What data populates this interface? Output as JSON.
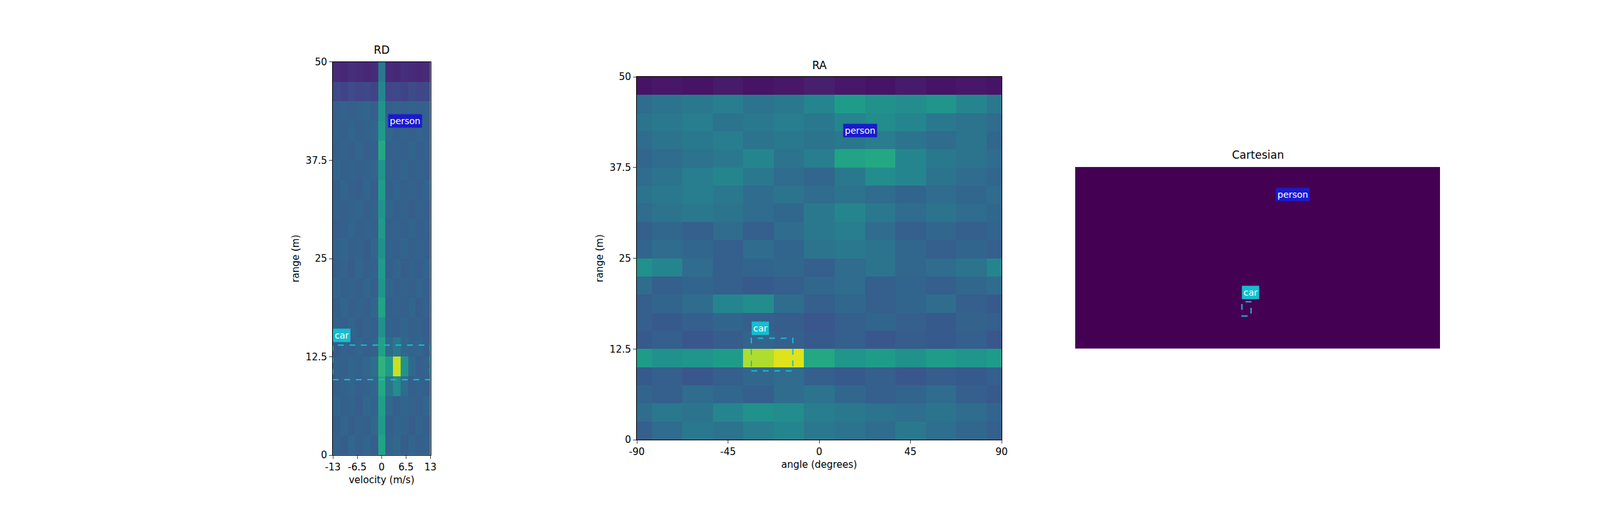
{
  "chart_data": [
    {
      "type": "heatmap",
      "title": "RD",
      "xlabel": "velocity (m/s)",
      "ylabel": "range (m)",
      "x": [
        -12,
        -10,
        -8,
        -6,
        -4,
        -2,
        0,
        2,
        4,
        6,
        8,
        10,
        12
      ],
      "y": [
        1.25,
        3.75,
        6.25,
        8.75,
        11.25,
        13.75,
        16.25,
        18.75,
        21.25,
        23.75,
        26.25,
        28.75,
        31.25,
        33.75,
        36.25,
        38.75,
        41.25,
        43.75,
        46.25,
        48.75
      ],
      "z": [
        [
          0.31,
          0.29,
          0.33,
          0.3,
          0.32,
          0.3,
          0.58,
          0.31,
          0.33,
          0.29,
          0.32,
          0.3,
          0.31
        ],
        [
          0.3,
          0.32,
          0.29,
          0.31,
          0.3,
          0.33,
          0.55,
          0.3,
          0.32,
          0.31,
          0.29,
          0.32,
          0.3
        ],
        [
          0.32,
          0.3,
          0.31,
          0.29,
          0.33,
          0.31,
          0.56,
          0.33,
          0.3,
          0.32,
          0.31,
          0.3,
          0.33
        ],
        [
          0.3,
          0.31,
          0.32,
          0.3,
          0.31,
          0.32,
          0.6,
          0.38,
          0.48,
          0.35,
          0.3,
          0.31,
          0.3
        ],
        [
          0.31,
          0.3,
          0.32,
          0.31,
          0.33,
          0.36,
          0.65,
          0.55,
          0.92,
          0.52,
          0.34,
          0.3,
          0.32
        ],
        [
          0.29,
          0.31,
          0.3,
          0.32,
          0.3,
          0.31,
          0.57,
          0.34,
          0.4,
          0.33,
          0.31,
          0.32,
          0.3
        ],
        [
          0.31,
          0.3,
          0.32,
          0.29,
          0.31,
          0.3,
          0.5,
          0.31,
          0.3,
          0.32,
          0.3,
          0.31,
          0.29
        ],
        [
          0.3,
          0.32,
          0.3,
          0.31,
          0.3,
          0.32,
          0.58,
          0.3,
          0.31,
          0.3,
          0.32,
          0.29,
          0.31
        ],
        [
          0.32,
          0.3,
          0.31,
          0.3,
          0.32,
          0.3,
          0.52,
          0.32,
          0.3,
          0.31,
          0.3,
          0.32,
          0.3
        ],
        [
          0.3,
          0.31,
          0.29,
          0.32,
          0.3,
          0.31,
          0.54,
          0.3,
          0.32,
          0.29,
          0.31,
          0.3,
          0.32
        ],
        [
          0.31,
          0.32,
          0.3,
          0.31,
          0.29,
          0.32,
          0.5,
          0.31,
          0.3,
          0.32,
          0.3,
          0.31,
          0.3
        ],
        [
          0.29,
          0.3,
          0.32,
          0.3,
          0.31,
          0.3,
          0.53,
          0.3,
          0.31,
          0.3,
          0.32,
          0.3,
          0.31
        ],
        [
          0.31,
          0.3,
          0.31,
          0.32,
          0.3,
          0.31,
          0.51,
          0.32,
          0.3,
          0.31,
          0.29,
          0.31,
          0.3
        ],
        [
          0.3,
          0.32,
          0.3,
          0.29,
          0.32,
          0.3,
          0.55,
          0.3,
          0.32,
          0.3,
          0.31,
          0.3,
          0.32
        ],
        [
          0.32,
          0.3,
          0.31,
          0.3,
          0.31,
          0.32,
          0.52,
          0.31,
          0.3,
          0.32,
          0.3,
          0.31,
          0.3
        ],
        [
          0.3,
          0.31,
          0.3,
          0.32,
          0.3,
          0.3,
          0.6,
          0.3,
          0.31,
          0.3,
          0.32,
          0.3,
          0.31
        ],
        [
          0.31,
          0.3,
          0.32,
          0.3,
          0.31,
          0.32,
          0.54,
          0.32,
          0.3,
          0.31,
          0.3,
          0.32,
          0.3
        ],
        [
          0.3,
          0.31,
          0.3,
          0.31,
          0.32,
          0.3,
          0.52,
          0.3,
          0.31,
          0.3,
          0.31,
          0.3,
          0.31
        ],
        [
          0.22,
          0.2,
          0.23,
          0.21,
          0.22,
          0.2,
          0.45,
          0.21,
          0.22,
          0.2,
          0.23,
          0.21,
          0.22
        ],
        [
          0.12,
          0.11,
          0.13,
          0.12,
          0.11,
          0.12,
          0.4,
          0.12,
          0.11,
          0.13,
          0.12,
          0.11,
          0.12
        ]
      ],
      "zlim": [
        0,
        1
      ],
      "xlim": [
        -13,
        13
      ],
      "ylim": [
        0,
        50
      ],
      "xticks": [
        -13,
        -6.5,
        0,
        6.5,
        13
      ],
      "yticks": [
        0,
        12.5,
        25,
        37.5,
        50
      ],
      "boxes": [
        {
          "label": "car",
          "x0": -13,
          "x1": 13,
          "y0": 9.6,
          "y1": 14.0,
          "color": "#17becf"
        }
      ],
      "annotations": [
        {
          "text": "person",
          "x": 1.6,
          "y": 41.6,
          "color": "#1a1acc"
        }
      ]
    },
    {
      "type": "heatmap",
      "title": "RA",
      "xlabel": "angle (degrees)",
      "ylabel": "range (m)",
      "x": [
        -90,
        -75,
        -60,
        -45,
        -30,
        -15,
        0,
        15,
        30,
        45,
        60,
        75,
        90
      ],
      "y": [
        1.25,
        3.75,
        6.25,
        8.75,
        11.25,
        13.75,
        16.25,
        18.75,
        21.25,
        23.75,
        26.25,
        28.75,
        31.25,
        33.75,
        36.25,
        38.75,
        41.25,
        43.75,
        46.25,
        48.75
      ],
      "z": [
        [
          0.3,
          0.35,
          0.4,
          0.38,
          0.42,
          0.45,
          0.4,
          0.38,
          0.35,
          0.4,
          0.36,
          0.33,
          0.3
        ],
        [
          0.35,
          0.4,
          0.38,
          0.45,
          0.5,
          0.48,
          0.42,
          0.4,
          0.38,
          0.36,
          0.38,
          0.35,
          0.32
        ],
        [
          0.32,
          0.3,
          0.35,
          0.33,
          0.3,
          0.35,
          0.38,
          0.33,
          0.3,
          0.32,
          0.35,
          0.3,
          0.28
        ],
        [
          0.28,
          0.3,
          0.27,
          0.3,
          0.33,
          0.35,
          0.3,
          0.28,
          0.3,
          0.27,
          0.29,
          0.28,
          0.3
        ],
        [
          0.55,
          0.5,
          0.52,
          0.55,
          0.88,
          0.95,
          0.6,
          0.52,
          0.55,
          0.5,
          0.55,
          0.52,
          0.55
        ],
        [
          0.28,
          0.3,
          0.27,
          0.29,
          0.32,
          0.3,
          0.28,
          0.3,
          0.27,
          0.29,
          0.28,
          0.3,
          0.27
        ],
        [
          0.3,
          0.28,
          0.3,
          0.32,
          0.3,
          0.29,
          0.27,
          0.3,
          0.32,
          0.3,
          0.28,
          0.31,
          0.3
        ],
        [
          0.3,
          0.32,
          0.35,
          0.45,
          0.48,
          0.35,
          0.3,
          0.33,
          0.3,
          0.32,
          0.35,
          0.3,
          0.28
        ],
        [
          0.35,
          0.3,
          0.32,
          0.3,
          0.28,
          0.3,
          0.33,
          0.35,
          0.3,
          0.32,
          0.3,
          0.33,
          0.35
        ],
        [
          0.5,
          0.45,
          0.35,
          0.3,
          0.32,
          0.33,
          0.3,
          0.35,
          0.38,
          0.33,
          0.35,
          0.38,
          0.45
        ],
        [
          0.32,
          0.35,
          0.33,
          0.3,
          0.35,
          0.32,
          0.38,
          0.4,
          0.38,
          0.33,
          0.3,
          0.32,
          0.3
        ],
        [
          0.3,
          0.33,
          0.3,
          0.35,
          0.3,
          0.35,
          0.4,
          0.42,
          0.35,
          0.3,
          0.33,
          0.3,
          0.32
        ],
        [
          0.35,
          0.38,
          0.4,
          0.38,
          0.35,
          0.33,
          0.4,
          0.45,
          0.4,
          0.35,
          0.38,
          0.35,
          0.33
        ],
        [
          0.38,
          0.4,
          0.42,
          0.4,
          0.35,
          0.38,
          0.35,
          0.38,
          0.35,
          0.32,
          0.35,
          0.33,
          0.35
        ],
        [
          0.35,
          0.38,
          0.42,
          0.45,
          0.4,
          0.35,
          0.33,
          0.4,
          0.48,
          0.45,
          0.38,
          0.35,
          0.33
        ],
        [
          0.33,
          0.35,
          0.38,
          0.4,
          0.45,
          0.38,
          0.42,
          0.58,
          0.6,
          0.45,
          0.4,
          0.38,
          0.35
        ],
        [
          0.35,
          0.38,
          0.4,
          0.42,
          0.38,
          0.4,
          0.38,
          0.4,
          0.42,
          0.38,
          0.35,
          0.38,
          0.33
        ],
        [
          0.38,
          0.4,
          0.42,
          0.38,
          0.4,
          0.42,
          0.4,
          0.45,
          0.48,
          0.45,
          0.4,
          0.38,
          0.35
        ],
        [
          0.35,
          0.38,
          0.4,
          0.42,
          0.38,
          0.4,
          0.45,
          0.55,
          0.5,
          0.48,
          0.52,
          0.45,
          0.4
        ],
        [
          0.05,
          0.06,
          0.05,
          0.07,
          0.05,
          0.06,
          0.08,
          0.06,
          0.05,
          0.07,
          0.05,
          0.06,
          0.05
        ]
      ],
      "zlim": [
        0,
        1
      ],
      "xlim": [
        -90,
        90
      ],
      "ylim": [
        0,
        50
      ],
      "xticks": [
        -90,
        -45,
        0,
        45,
        90
      ],
      "yticks": [
        0,
        12.5,
        25,
        37.5,
        50
      ],
      "boxes": [
        {
          "label": "car",
          "x0": -33.5,
          "x1": -13,
          "y0": 9.5,
          "y1": 14.0,
          "color": "#17becf"
        }
      ],
      "annotations": [
        {
          "text": "person",
          "x": 11.8,
          "y": 41.6,
          "color": "#1a1acc"
        }
      ]
    },
    {
      "type": "heatmap",
      "title": "Cartesian",
      "x": [
        -25,
        25
      ],
      "y": [
        12.5,
        37.5
      ],
      "z": [
        [
          0,
          0
        ],
        [
          0,
          0
        ]
      ],
      "zlim": [
        0,
        1
      ],
      "xlim": [
        -50,
        50
      ],
      "ylim": [
        0,
        50
      ],
      "tick_labels": false,
      "boxes": [
        {
          "label": "car",
          "x0": -4.3,
          "x1": -1.8,
          "y0": 9.0,
          "y1": 12.9,
          "color": "#17becf"
        }
      ],
      "annotations": [
        {
          "text": "person",
          "x": 4.9,
          "y": 40.4,
          "color": "#1a1acc"
        }
      ]
    }
  ]
}
